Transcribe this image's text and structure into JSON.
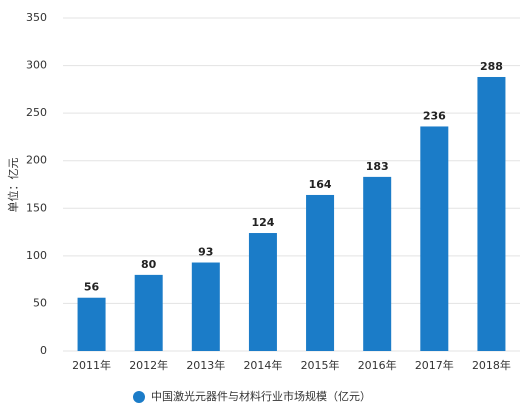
{
  "chart_data": {
    "type": "bar",
    "y_label": "单位：亿元",
    "categories": [
      "2011年",
      "2012年",
      "2013年",
      "2014年",
      "2015年",
      "2016年",
      "2017年",
      "2018年"
    ],
    "series": [
      {
        "name": "中国激光元器件与材料行业市场规模（亿元）",
        "color": "#1b7cc8",
        "values": [
          56,
          80,
          93,
          124,
          164,
          183,
          236,
          288
        ]
      }
    ],
    "ylim": [
      0,
      350
    ],
    "yticks": [
      0,
      50,
      100,
      150,
      200,
      250,
      300,
      350
    ],
    "grid": true
  }
}
